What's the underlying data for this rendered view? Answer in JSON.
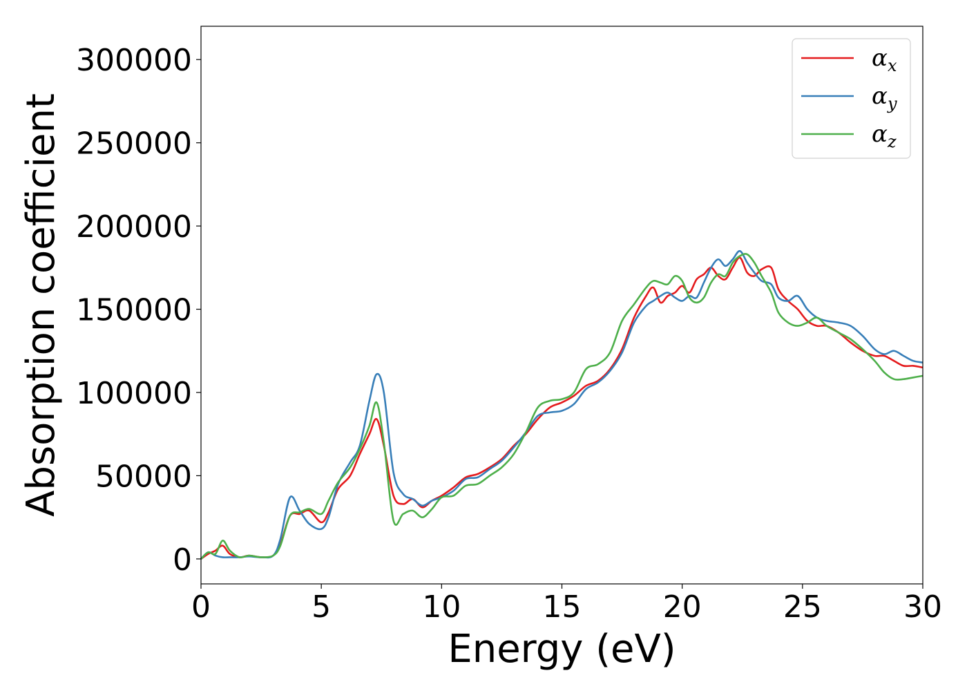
{
  "chart_data": {
    "type": "line",
    "title": "",
    "xlabel": "Energy (eV)",
    "ylabel": "Absorption coefficient",
    "xlim": [
      0,
      30
    ],
    "ylim": [
      -15000,
      320000
    ],
    "xticks": [
      0,
      5,
      10,
      15,
      20,
      25,
      30
    ],
    "xtick_labels": [
      "0",
      "5",
      "10",
      "15",
      "20",
      "25",
      "30"
    ],
    "yticks": [
      0,
      50000,
      100000,
      150000,
      200000,
      250000,
      300000
    ],
    "ytick_labels": [
      "0",
      "50000",
      "100000",
      "150000",
      "200000",
      "250000",
      "300000"
    ],
    "grid": false,
    "legend_position": "top-right",
    "series": [
      {
        "name": "αx",
        "name_base": "α",
        "name_sub": "x",
        "color": "#e41a1c",
        "x": [
          0,
          0.3,
          0.6,
          0.9,
          1.2,
          1.6,
          2,
          2.5,
          3,
          3.3,
          3.7,
          4.1,
          4.5,
          5,
          5.3,
          5.7,
          6.2,
          6.6,
          7,
          7.3,
          7.6,
          8,
          8.4,
          8.8,
          9.2,
          9.6,
          10,
          10.5,
          11,
          11.5,
          12,
          12.5,
          13,
          13.5,
          14,
          14.5,
          15,
          15.5,
          16,
          16.5,
          17,
          17.5,
          18,
          18.5,
          18.8,
          19.1,
          19.4,
          19.7,
          20,
          20.3,
          20.6,
          20.9,
          21.2,
          21.5,
          21.8,
          22.1,
          22.4,
          22.7,
          23,
          23.3,
          23.7,
          24,
          24.4,
          24.8,
          25.2,
          25.6,
          26,
          26.5,
          27,
          27.5,
          28,
          28.4,
          28.8,
          29.2,
          29.6,
          30
        ],
        "y": [
          0,
          3000,
          5000,
          8000,
          3000,
          1000,
          2000,
          1000,
          2000,
          9000,
          26000,
          27000,
          29000,
          22000,
          28000,
          42000,
          50000,
          63000,
          75000,
          84000,
          68000,
          38000,
          33000,
          36000,
          31000,
          35000,
          38000,
          43000,
          49000,
          51000,
          55000,
          60000,
          68000,
          75000,
          84000,
          91000,
          94000,
          98000,
          104000,
          107000,
          114000,
          126000,
          145000,
          158000,
          163000,
          154000,
          158000,
          160000,
          164000,
          160000,
          168000,
          171000,
          175000,
          170000,
          168000,
          175000,
          181000,
          172000,
          170000,
          174000,
          175000,
          162000,
          155000,
          150000,
          143000,
          140000,
          140000,
          136000,
          130000,
          125000,
          122000,
          122000,
          119000,
          116000,
          116000,
          115000
        ]
      },
      {
        "name": "αy",
        "name_base": "α",
        "name_sub": "y",
        "color": "#377eb8",
        "x": [
          0,
          0.3,
          0.6,
          0.9,
          1.2,
          1.6,
          2,
          2.5,
          3,
          3.3,
          3.7,
          4.1,
          4.5,
          5,
          5.3,
          5.7,
          6.2,
          6.6,
          7,
          7.3,
          7.6,
          8,
          8.4,
          8.8,
          9.2,
          9.6,
          10,
          10.5,
          11,
          11.5,
          12,
          12.5,
          13,
          13.5,
          14,
          14.5,
          15,
          15.5,
          16,
          16.5,
          17,
          17.5,
          18,
          18.5,
          18.8,
          19.1,
          19.4,
          19.7,
          20,
          20.3,
          20.6,
          20.9,
          21.2,
          21.5,
          21.8,
          22.1,
          22.4,
          22.7,
          23,
          23.3,
          23.7,
          24,
          24.4,
          24.8,
          25.2,
          25.6,
          26,
          26.5,
          27,
          27.5,
          28,
          28.4,
          28.8,
          29.2,
          29.6,
          30
        ],
        "y": [
          0,
          4000,
          2000,
          1000,
          1000,
          1000,
          1500,
          1000,
          2000,
          12000,
          37000,
          29000,
          21000,
          18000,
          25000,
          45000,
          58000,
          68000,
          95000,
          111000,
          100000,
          52000,
          39000,
          36000,
          32000,
          35000,
          37000,
          41000,
          48000,
          49000,
          54000,
          59000,
          67000,
          76000,
          86000,
          88000,
          89000,
          93000,
          102000,
          106000,
          113000,
          124000,
          142000,
          152000,
          155000,
          158000,
          160000,
          157000,
          155000,
          158000,
          157000,
          166000,
          175000,
          180000,
          176000,
          180000,
          185000,
          178000,
          172000,
          167000,
          165000,
          157000,
          155000,
          158000,
          150000,
          145000,
          143000,
          142000,
          140000,
          134000,
          126000,
          123000,
          125000,
          122000,
          119000,
          118000
        ]
      },
      {
        "name": "αz",
        "name_base": "α",
        "name_sub": "z",
        "color": "#4daf4a",
        "x": [
          0,
          0.3,
          0.6,
          0.9,
          1.2,
          1.6,
          2,
          2.5,
          3,
          3.3,
          3.7,
          4.1,
          4.5,
          5,
          5.3,
          5.7,
          6.2,
          6.6,
          7,
          7.3,
          7.6,
          8,
          8.4,
          8.8,
          9.2,
          9.6,
          10,
          10.5,
          11,
          11.5,
          12,
          12.5,
          13,
          13.5,
          14,
          14.5,
          15,
          15.5,
          16,
          16.5,
          17,
          17.5,
          18,
          18.5,
          18.8,
          19.1,
          19.4,
          19.7,
          20,
          20.3,
          20.6,
          20.9,
          21.2,
          21.5,
          21.8,
          22.1,
          22.4,
          22.7,
          23,
          23.3,
          23.7,
          24,
          24.4,
          24.8,
          25.2,
          25.6,
          26,
          26.5,
          27,
          27.5,
          28,
          28.4,
          28.8,
          29.2,
          29.6,
          30
        ],
        "y": [
          0,
          4000,
          3000,
          11000,
          5000,
          1000,
          2000,
          1000,
          2000,
          8000,
          26000,
          28000,
          30000,
          27000,
          35000,
          46000,
          55000,
          66000,
          80000,
          94000,
          70000,
          23000,
          27000,
          29000,
          25000,
          30000,
          37000,
          38000,
          44000,
          45000,
          50000,
          55000,
          63000,
          76000,
          91000,
          95000,
          96000,
          100000,
          114000,
          117000,
          124000,
          143000,
          153000,
          163000,
          167000,
          166000,
          165000,
          170000,
          167000,
          157000,
          154000,
          157000,
          166000,
          171000,
          170000,
          178000,
          182000,
          183000,
          178000,
          170000,
          160000,
          148000,
          142000,
          140000,
          142000,
          145000,
          140000,
          136000,
          132000,
          126000,
          119000,
          112000,
          108000,
          108000,
          109000,
          110000
        ]
      }
    ]
  }
}
